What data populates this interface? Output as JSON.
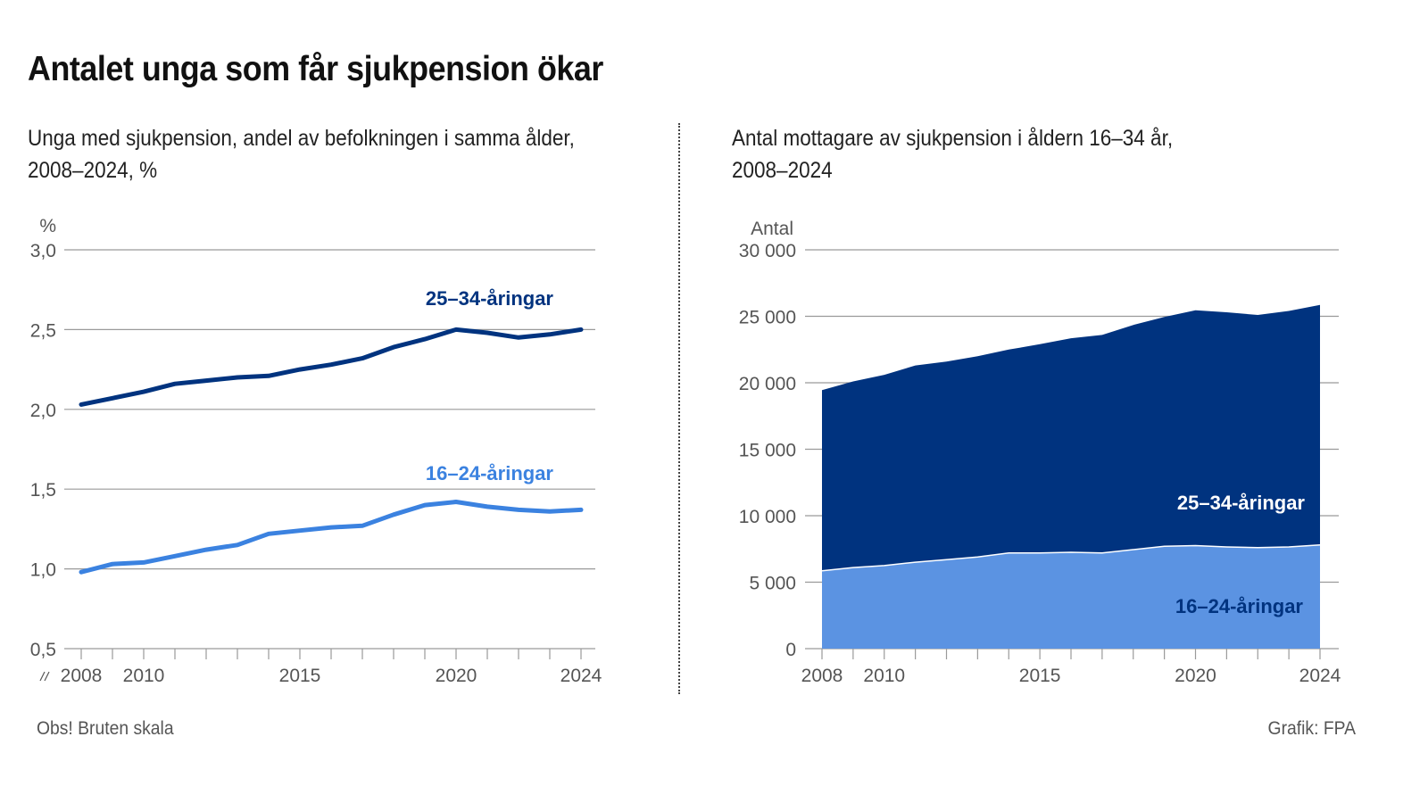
{
  "title": "Antalet unga som får sjukpension ökar",
  "colors": {
    "dark_blue": "#00337f",
    "light_blue": "#3b82e0",
    "area_light": "#5b93e2",
    "grid": "#9a9a9a",
    "text": "#555555"
  },
  "footer": {
    "note": "Obs! Bruten skala",
    "credit": "Grafik: FPA"
  },
  "chart_data": [
    {
      "type": "line",
      "title": "Unga med sjukpension, andel av befolkningen i samma ålder, 2008–2024, %",
      "title_line1": "Unga med sjukpension, andel av befolkningen i samma ålder,",
      "title_line2": "2008–2024, %",
      "ylabel": "%",
      "xlabel": "",
      "ylim": [
        0.5,
        3.0
      ],
      "yticks": [
        0.5,
        1.0,
        1.5,
        2.0,
        2.5,
        3.0
      ],
      "ytick_labels": [
        "0,5",
        "1,0",
        "1,5",
        "2,0",
        "2,5",
        "3,0"
      ],
      "xlim": [
        2008,
        2024
      ],
      "xtick_labels": [
        "2008",
        "2010",
        "2015",
        "2020",
        "2024"
      ],
      "axis_break": true,
      "grid": true,
      "x": [
        2008,
        2009,
        2010,
        2011,
        2012,
        2013,
        2014,
        2015,
        2016,
        2017,
        2018,
        2019,
        2020,
        2021,
        2022,
        2023,
        2024
      ],
      "series": [
        {
          "name": "25–34-åringar",
          "color": "#00337f",
          "values": [
            2.03,
            2.07,
            2.11,
            2.16,
            2.18,
            2.2,
            2.21,
            2.25,
            2.28,
            2.32,
            2.39,
            2.44,
            2.5,
            2.48,
            2.45,
            2.47,
            2.5
          ]
        },
        {
          "name": "16–24-åringar",
          "color": "#3b82e0",
          "values": [
            0.98,
            1.03,
            1.04,
            1.08,
            1.12,
            1.15,
            1.22,
            1.24,
            1.26,
            1.27,
            1.34,
            1.4,
            1.42,
            1.39,
            1.37,
            1.36,
            1.37
          ]
        }
      ]
    },
    {
      "type": "area",
      "stacked": true,
      "title": "Antal mottagare av sjukpension i åldern 16–34 år, 2008–2024",
      "title_line1": "Antal mottagare av sjukpension i åldern 16–34 år,",
      "title_line2": "2008–2024",
      "ylabel": "Antal",
      "xlabel": "",
      "ylim": [
        0,
        30000
      ],
      "yticks": [
        0,
        5000,
        10000,
        15000,
        20000,
        25000,
        30000
      ],
      "ytick_labels": [
        "0",
        "5 000",
        "10 000",
        "15 000",
        "20 000",
        "25 000",
        "30 000"
      ],
      "xlim": [
        2008,
        2024
      ],
      "xtick_labels": [
        "2008",
        "2010",
        "2015",
        "2020",
        "2024"
      ],
      "grid": true,
      "x": [
        2008,
        2009,
        2010,
        2011,
        2012,
        2013,
        2014,
        2015,
        2016,
        2017,
        2018,
        2019,
        2020,
        2021,
        2022,
        2023,
        2024
      ],
      "series": [
        {
          "name": "16–24-åringar",
          "color": "#5b93e2",
          "label_color": "#00337f",
          "values": [
            5850,
            6100,
            6250,
            6500,
            6700,
            6900,
            7200,
            7200,
            7250,
            7200,
            7450,
            7700,
            7750,
            7650,
            7600,
            7650,
            7800
          ]
        },
        {
          "name": "25–34-åringar",
          "color": "#00337f",
          "label_color": "#ffffff",
          "values": [
            13600,
            14000,
            14350,
            14800,
            14900,
            15100,
            15300,
            15700,
            16100,
            16400,
            16900,
            17250,
            17700,
            17650,
            17500,
            17750,
            18050
          ]
        }
      ]
    }
  ]
}
